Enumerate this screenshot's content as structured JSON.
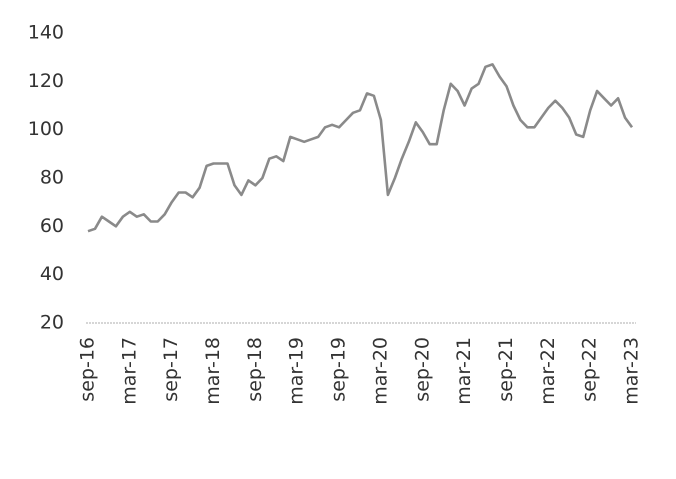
{
  "chart_data": {
    "type": "line",
    "categories": [
      "sep-16",
      null,
      null,
      null,
      null,
      null,
      "mar-17",
      null,
      null,
      null,
      null,
      null,
      "sep-17",
      null,
      null,
      null,
      null,
      null,
      "mar-18",
      null,
      null,
      null,
      null,
      null,
      "sep-18",
      null,
      null,
      null,
      null,
      null,
      "mar-19",
      null,
      null,
      null,
      null,
      null,
      "sep-19",
      null,
      null,
      null,
      null,
      null,
      "mar-20",
      null,
      null,
      null,
      null,
      null,
      "sep-20",
      null,
      null,
      null,
      null,
      null,
      "mar-21",
      null,
      null,
      null,
      null,
      null,
      "sep-21",
      null,
      null,
      null,
      null,
      null,
      "mar-22",
      null,
      null,
      null,
      null,
      null,
      "sep-22",
      null,
      null,
      null,
      null,
      null,
      "mar-23"
    ],
    "values": [
      58,
      59,
      64,
      62,
      60,
      64,
      66,
      64,
      65,
      62,
      62,
      65,
      70,
      74,
      74,
      72,
      76,
      85,
      86,
      86,
      86,
      77,
      73,
      79,
      77,
      80,
      88,
      89,
      87,
      97,
      96,
      95,
      96,
      97,
      101,
      102,
      101,
      104,
      107,
      108,
      115,
      114,
      104,
      73,
      80,
      88,
      95,
      103,
      99,
      94,
      94,
      108,
      119,
      116,
      110,
      117,
      119,
      126,
      127,
      122,
      118,
      110,
      104,
      101,
      101,
      105,
      109,
      112,
      109,
      105,
      98,
      97,
      108,
      116,
      113,
      110,
      113,
      105,
      101
    ],
    "color": "#8a8a8a",
    "ylim": [
      20,
      140
    ],
    "yticks": [
      20,
      40,
      60,
      80,
      100,
      120,
      140
    ],
    "grid": false
  }
}
